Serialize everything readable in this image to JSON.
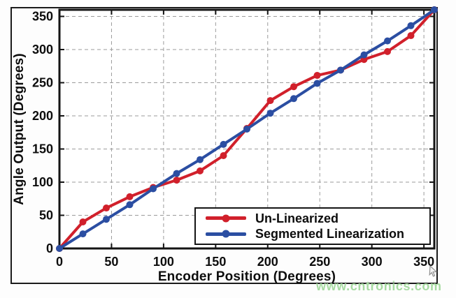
{
  "chart_data": {
    "type": "line",
    "xlabel": "Encoder Position (Degrees)",
    "ylabel": "Angle Output (Degrees)",
    "xlim": [
      0,
      360
    ],
    "ylim": [
      0,
      360
    ],
    "x_ticks": [
      0,
      50,
      100,
      150,
      200,
      250,
      300,
      350
    ],
    "y_ticks": [
      0,
      50,
      100,
      150,
      200,
      250,
      300,
      350
    ],
    "grid": "dashed",
    "legend_position": "inside lower right",
    "x": [
      0,
      22.5,
      45,
      67.5,
      90,
      112.5,
      135,
      157.5,
      180,
      202.5,
      225,
      247.5,
      270,
      292.5,
      315,
      337.5,
      360
    ],
    "series": [
      {
        "name": "Un-Linearized",
        "color": "#d1202b",
        "marker": "circle",
        "values": [
          0,
          40,
          61,
          78,
          92,
          103,
          117,
          140,
          181,
          223,
          244,
          261,
          269,
          285,
          297,
          321,
          360
        ]
      },
      {
        "name": "Segmented Linearization",
        "color": "#2b4ea2",
        "marker": "circle",
        "values": [
          0,
          22,
          44,
          66,
          90,
          113,
          134,
          157,
          180,
          204,
          226,
          249,
          269,
          292,
          313,
          336,
          360
        ]
      }
    ]
  },
  "watermark": {
    "text": "www.cntronics.com",
    "color": "#a7dba2"
  }
}
